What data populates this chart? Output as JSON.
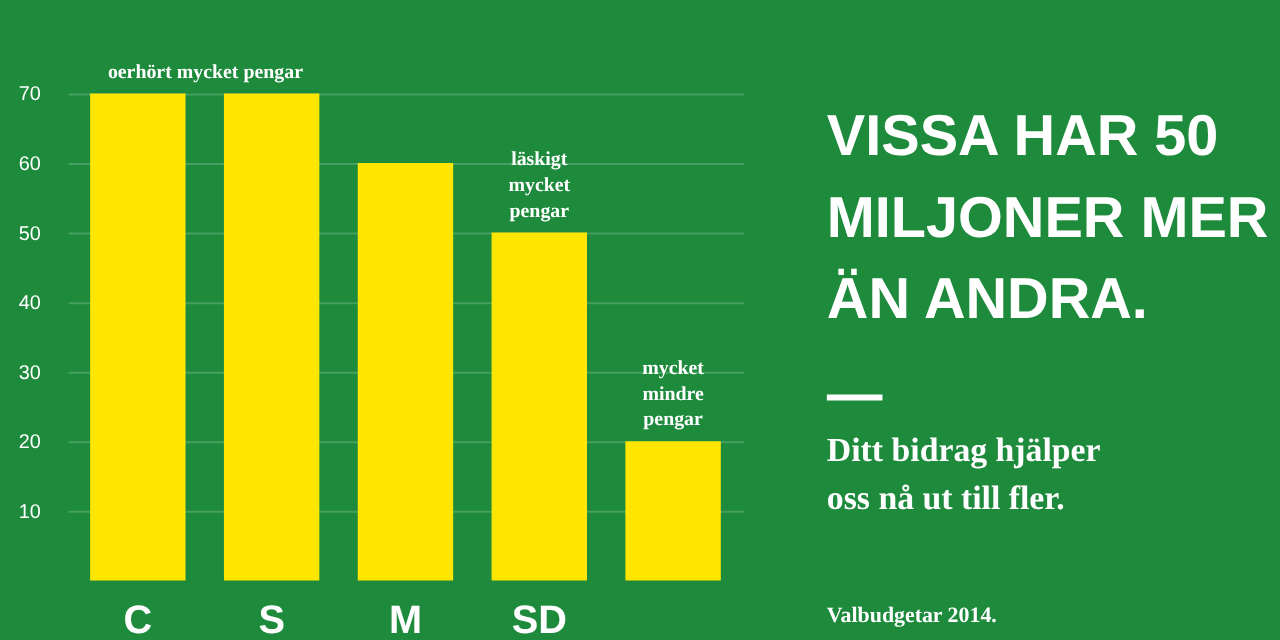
{
  "chart_data": {
    "type": "bar",
    "title": "VISSA HAR 50\nMILJONER MER\nÄN ANDRA.",
    "subtitle": "Ditt bidrag hjälper\noss nå ut till fler.",
    "categories": [
      "C",
      "S",
      "M",
      "SD",
      null
    ],
    "values": [
      70,
      70,
      60,
      50,
      20
    ],
    "color": "#ffe600",
    "ylim": [
      0,
      70
    ],
    "yticks": [
      10,
      20,
      30,
      40,
      50,
      60,
      70
    ],
    "grid": "y",
    "annotations": [
      "oerhört mycket pengar",
      {
        "text": "läskigt mycket pengar",
        "x": "SD",
        "y": 50
      },
      "mycket mindre pengar",
      "Valbudgetar 2014."
    ]
  }
}
